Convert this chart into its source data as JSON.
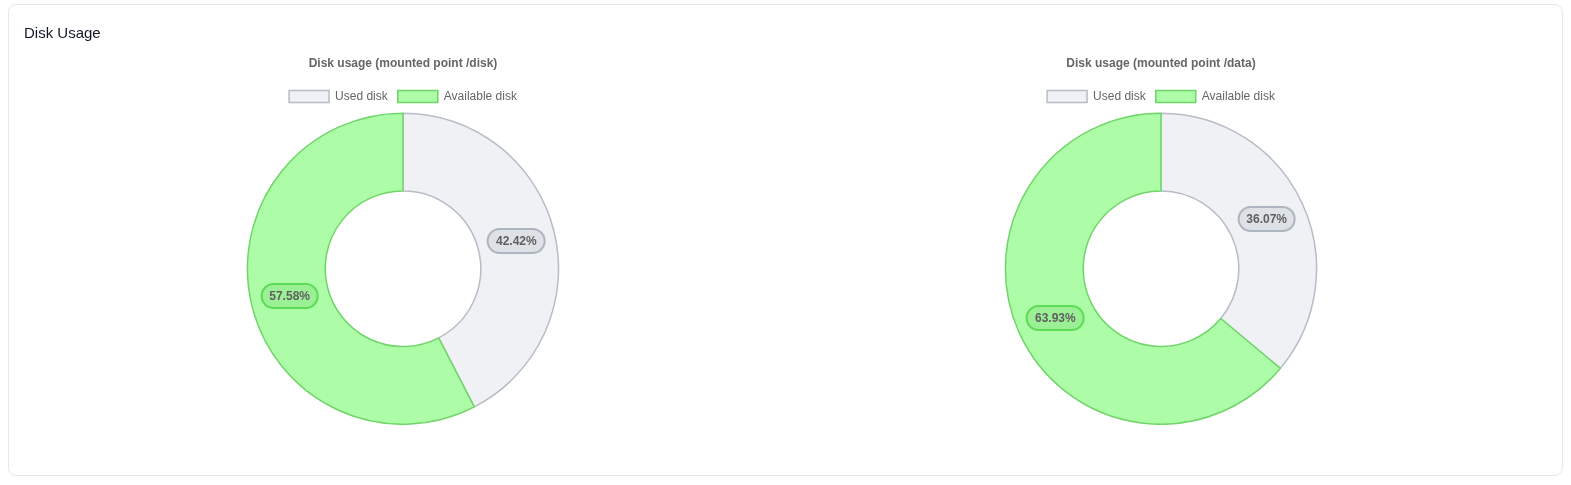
{
  "chart_data": [
    {
      "type": "other",
      "title": "Disk Usage"
    },
    {
      "type": "donut",
      "title": "Disk usage (mounted point /disk)",
      "categories": [
        "Used disk",
        "Available disk"
      ],
      "values": [
        42.42,
        57.58
      ],
      "colors": [
        "#eff1f4",
        "#adfca8"
      ],
      "value_labels": [
        "42.42%",
        "57.58%"
      ],
      "legend": "top"
    },
    {
      "type": "donut",
      "title": "Disk usage (mounted point /data)",
      "categories": [
        "Used disk",
        "Available disk"
      ],
      "values": [
        36.07,
        63.93
      ],
      "colors": [
        "#eff1f4",
        "#adfca8"
      ],
      "value_labels": [
        "36.07%",
        "63.93%"
      ],
      "legend": "top"
    }
  ]
}
